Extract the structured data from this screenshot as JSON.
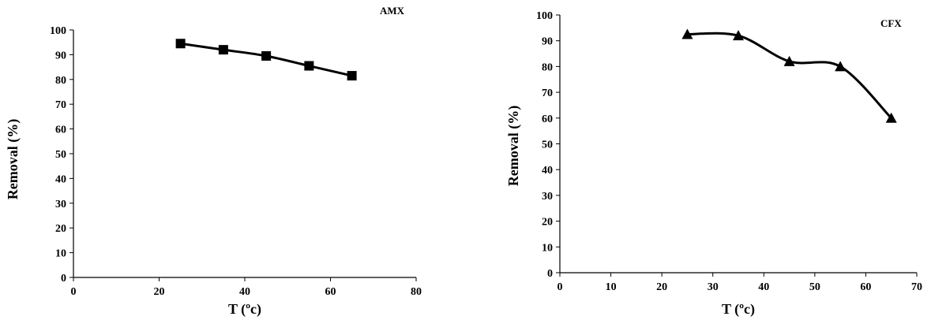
{
  "chart_data": [
    {
      "type": "line",
      "annotation": "AMX",
      "xlabel": "T (ºc)",
      "ylabel": "Removal (%)",
      "xlim": [
        0,
        80
      ],
      "ylim": [
        0,
        100
      ],
      "xticks": [
        0,
        20,
        40,
        60,
        80
      ],
      "yticks": [
        0,
        10,
        20,
        30,
        40,
        50,
        60,
        70,
        80,
        90,
        100
      ],
      "marker": "square",
      "smooth": true,
      "grid": false,
      "series": [
        {
          "x": [
            25,
            35,
            45,
            55,
            65
          ],
          "y": [
            94.5,
            92,
            89.5,
            85.5,
            81.5
          ]
        }
      ]
    },
    {
      "type": "line",
      "annotation": "CFX",
      "xlabel": "T (ºc)",
      "ylabel": "Removal (%)",
      "xlim": [
        0,
        70
      ],
      "ylim": [
        0,
        100
      ],
      "xticks": [
        0,
        10,
        20,
        30,
        40,
        50,
        60,
        70
      ],
      "yticks": [
        0,
        10,
        20,
        30,
        40,
        50,
        60,
        70,
        80,
        90,
        100
      ],
      "marker": "triangle",
      "smooth": true,
      "grid": false,
      "series": [
        {
          "x": [
            25,
            35,
            45,
            55,
            65
          ],
          "y": [
            92.5,
            92,
            82,
            80,
            60
          ]
        }
      ]
    }
  ]
}
